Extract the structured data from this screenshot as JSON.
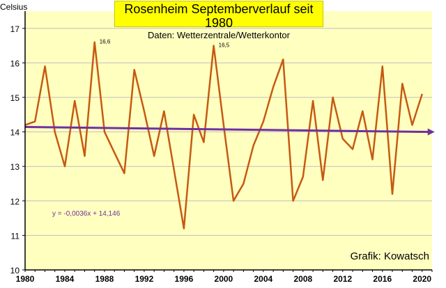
{
  "header": {
    "title": "Rosenheim Septemberverlauf seit 1980",
    "subtitle": "Daten: Wetterzentrale/Wetterkontor"
  },
  "credit": "Grafik: Kowatsch",
  "chart_data": {
    "type": "line",
    "title": "Rosenheim Septemberverlauf seit 1980",
    "subtitle": "Daten: Wetterzentrale/Wetterkontor",
    "ylabel": "Celsius",
    "xlabel": "",
    "xlim": [
      1980,
      2021
    ],
    "ylim": [
      10,
      17.5
    ],
    "x_ticks": [
      1980,
      1984,
      1988,
      1992,
      1996,
      2000,
      2004,
      2008,
      2012,
      2016,
      2020
    ],
    "y_ticks": [
      10,
      11,
      12,
      13,
      14,
      15,
      16,
      17
    ],
    "grid": "horizontal",
    "plot_background": "#ffffc0",
    "series": [
      {
        "color": "#c55a11",
        "x": [
          1980,
          1981,
          1982,
          1983,
          1984,
          1985,
          1986,
          1987,
          1988,
          1989,
          1990,
          1991,
          1992,
          1993,
          1994,
          1995,
          1996,
          1997,
          1998,
          1999,
          2000,
          2001,
          2002,
          2003,
          2004,
          2005,
          2006,
          2007,
          2008,
          2009,
          2010,
          2011,
          2012,
          2013,
          2014,
          2015,
          2016,
          2017,
          2018,
          2019,
          2020
        ],
        "values": [
          14.2,
          14.3,
          15.9,
          14.0,
          13.0,
          14.9,
          13.3,
          16.6,
          14.0,
          13.4,
          12.8,
          15.8,
          14.6,
          13.3,
          14.6,
          12.9,
          11.2,
          14.5,
          13.7,
          16.5,
          14.2,
          12.0,
          12.5,
          13.6,
          14.3,
          15.3,
          16.1,
          12.0,
          12.7,
          14.9,
          12.6,
          15.0,
          13.8,
          13.5,
          14.6,
          13.2,
          15.9,
          12.2,
          15.4,
          14.2,
          15.1
        ]
      }
    ],
    "trendline": {
      "name": "y = -0,0036x + 14,146",
      "color": "#7030a0",
      "slope": -0.0036,
      "intercept": 14.146
    },
    "annotations": [
      {
        "x": 1987,
        "y": 16.6,
        "text": "16,6"
      },
      {
        "x": 1999,
        "y": 16.5,
        "text": "16,5"
      }
    ]
  }
}
